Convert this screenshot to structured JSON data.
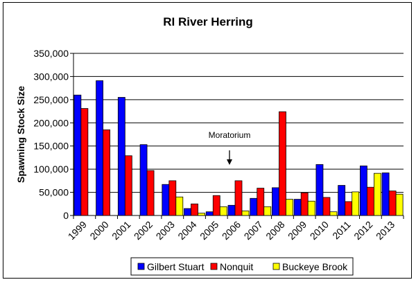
{
  "chart_data": {
    "type": "bar",
    "title": "RI River Herring",
    "ylabel": "Spawning Stock Size",
    "xlabel": "",
    "ylim": [
      0,
      350000
    ],
    "yticks": [
      0,
      50000,
      100000,
      150000,
      200000,
      250000,
      300000,
      350000
    ],
    "ytick_labels": [
      "0",
      "50,000",
      "100,000",
      "150,000",
      "200,000",
      "250,000",
      "300,000",
      "350,000"
    ],
    "grid": true,
    "legend_position": "bottom",
    "categories": [
      "1999",
      "2000",
      "2001",
      "2002",
      "2003",
      "2004",
      "2005",
      "2006",
      "2007",
      "2008",
      "2009",
      "2010",
      "2011",
      "2012",
      "2013"
    ],
    "series": [
      {
        "name": "Gilbert Stuart",
        "color": "#0000ff",
        "values": [
          260000,
          291000,
          255000,
          153000,
          67000,
          15000,
          8000,
          22000,
          37000,
          60000,
          35000,
          110000,
          65000,
          107000,
          92000
        ]
      },
      {
        "name": "Nonquit",
        "color": "#ff0000",
        "values": [
          231000,
          185000,
          129000,
          97000,
          75000,
          25000,
          43000,
          75000,
          59000,
          224000,
          49000,
          39000,
          30000,
          61000,
          53000
        ]
      },
      {
        "name": "Buckeye Brook",
        "color": "#ffff00",
        "values": [
          0,
          0,
          0,
          0,
          40000,
          5000,
          19000,
          10000,
          19000,
          35000,
          31000,
          8000,
          51000,
          91000,
          46000
        ]
      }
    ],
    "annotations": [
      {
        "text": "Moratorium",
        "category": "2006",
        "arrow_from": 104000,
        "arrow_to": 185000
      }
    ]
  }
}
